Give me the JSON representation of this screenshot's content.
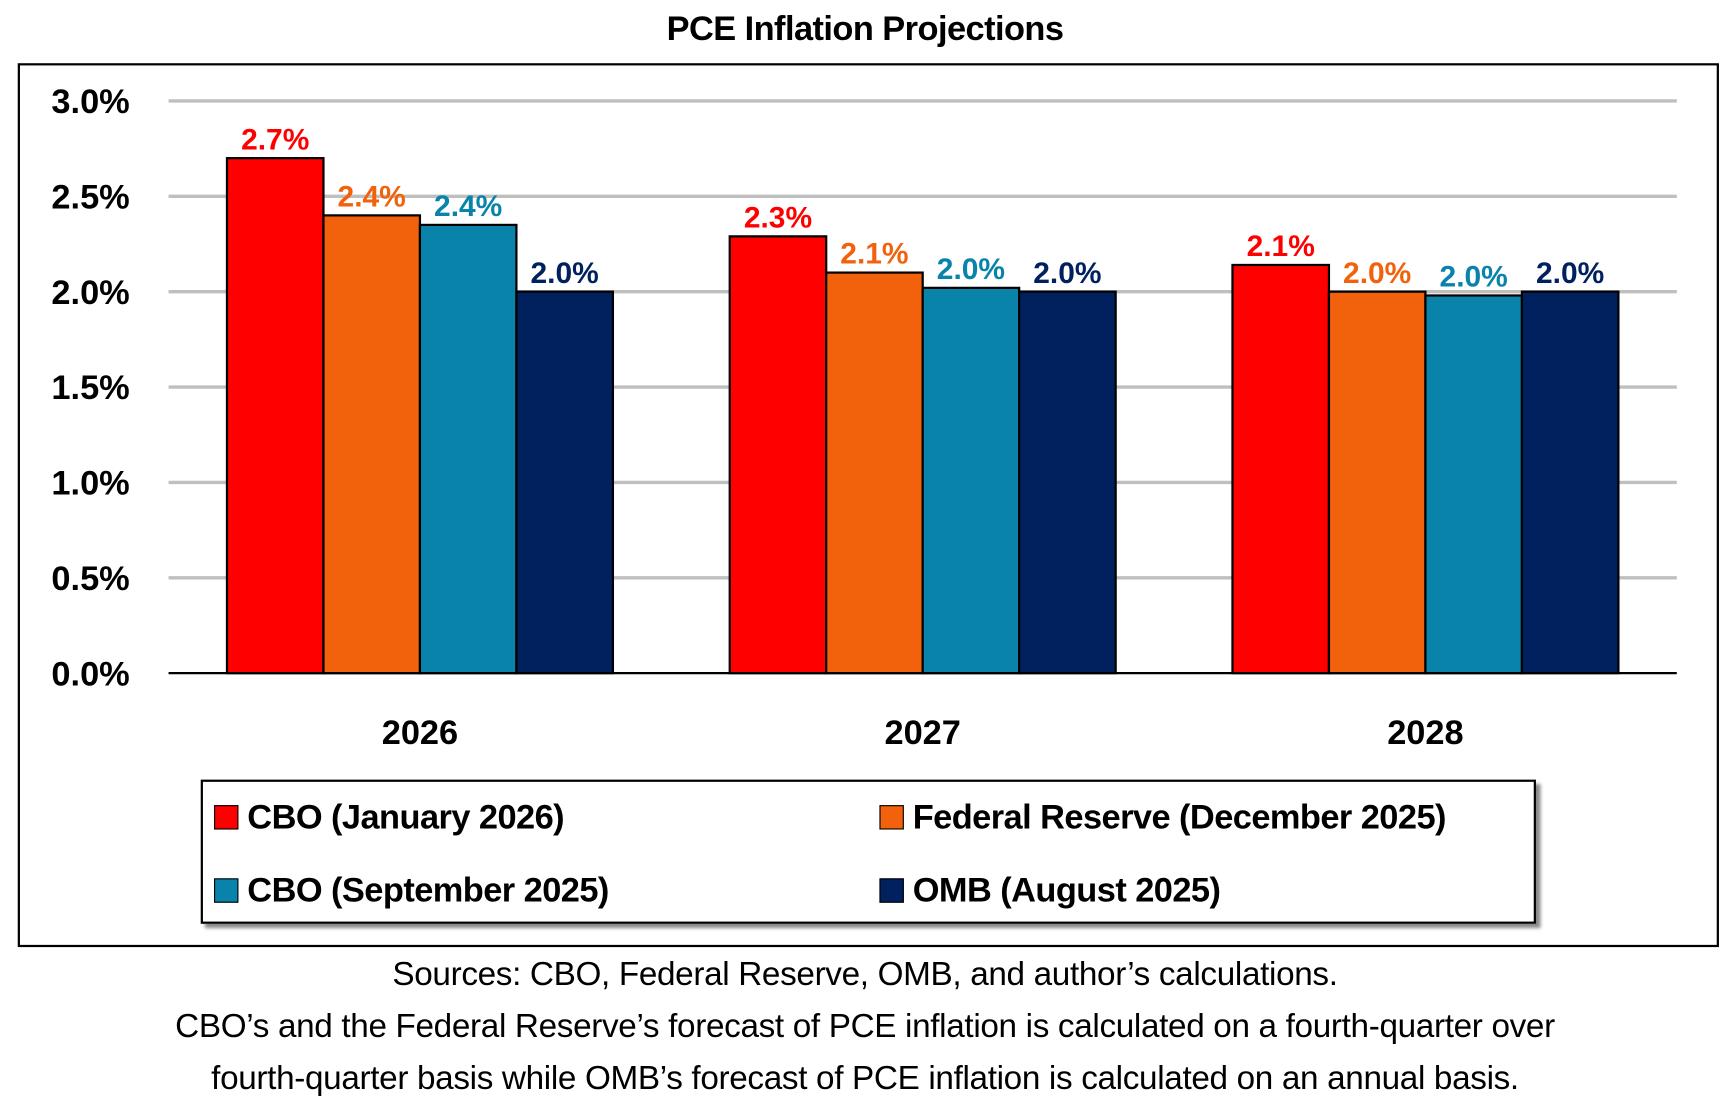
{
  "chart_data": {
    "type": "bar",
    "title": "PCE Inflation Projections",
    "categories": [
      "2026",
      "2027",
      "2028"
    ],
    "ylim": [
      0,
      3.0
    ],
    "yticks": [
      "0.0%",
      "0.5%",
      "1.0%",
      "1.5%",
      "2.0%",
      "2.5%",
      "3.0%"
    ],
    "grid": true,
    "legend_position": "bottom",
    "series": [
      {
        "name": "CBO (January 2026)",
        "color": "#ff0000",
        "values": [
          2.7,
          2.29,
          2.14
        ],
        "labels": [
          "2.7%",
          "2.3%",
          "2.1%"
        ]
      },
      {
        "name": "Federal Reserve (December 2025)",
        "color": "#f2620c",
        "values": [
          2.4,
          2.1,
          2.0
        ],
        "labels": [
          "2.4%",
          "2.1%",
          "2.0%"
        ]
      },
      {
        "name": "CBO (September 2025)",
        "color": "#0a83ab",
        "values": [
          2.35,
          2.02,
          1.98
        ],
        "labels": [
          "2.4%",
          "2.0%",
          "2.0%"
        ]
      },
      {
        "name": "OMB (August 2025)",
        "color": "#00205e",
        "values": [
          2.0,
          2.0,
          2.0
        ],
        "labels": [
          "2.0%",
          "2.0%",
          "2.0%"
        ]
      }
    ]
  },
  "notes": [
    "Sources: CBO, Federal Reserve, OMB, and author’s calculations.",
    "CBO’s and the Federal Reserve’s forecast of PCE inflation is calculated on a fourth-quarter over",
    "fourth-quarter basis while OMB’s forecast of PCE inflation is calculated on an annual basis."
  ]
}
